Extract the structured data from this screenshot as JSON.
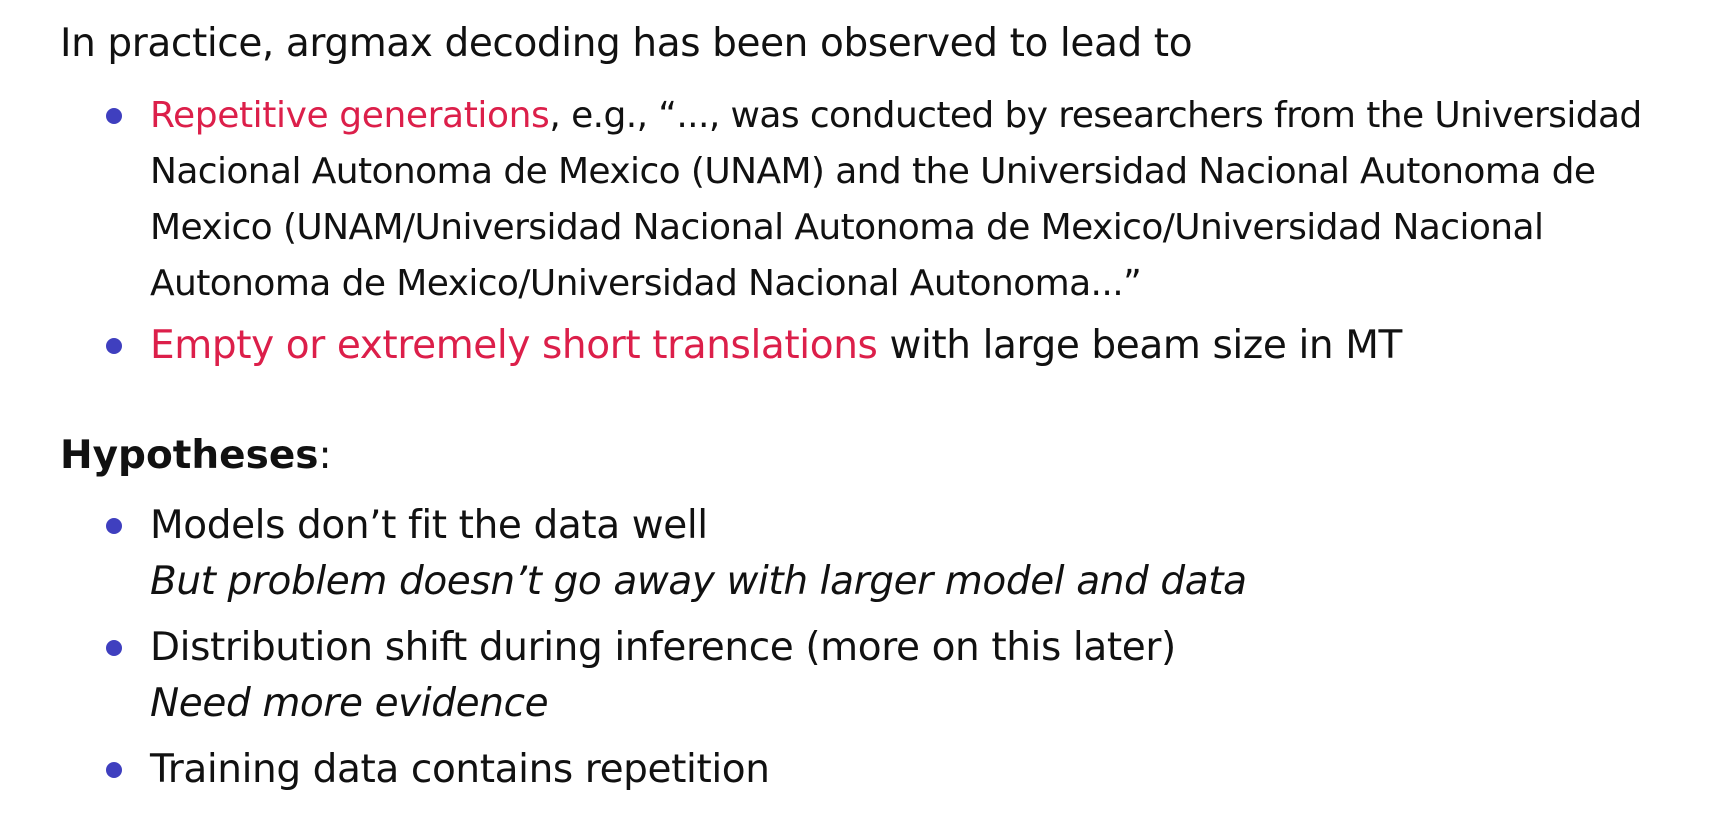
{
  "intro": "In practice, argmax decoding has been observed to lead to",
  "observations": {
    "repetitive": {
      "highlight": "Repetitive generations",
      "rest": ", e.g., “..., was conducted by researchers from the Universidad Nacional Autonoma de Mexico (UNAM) and the Universidad Nacional Autonoma de Mexico (UNAM/Universidad Nacional Autonoma de Mexico/Universidad Nacional Autonoma de Mexico/Universidad Nacional Autonoma...”"
    },
    "empty": {
      "highlight": "Empty or extremely short translations",
      "rest": " with large beam size in MT"
    }
  },
  "hypotheses": {
    "title": "Hypotheses",
    "colon": ":",
    "items": [
      {
        "text": "Models don’t fit the data well",
        "note": "But problem doesn’t go away with larger model and data"
      },
      {
        "text": "Distribution shift during inference (more on this later)",
        "note": "Need more evidence"
      },
      {
        "text": "Training data contains repetition",
        "note": ""
      }
    ]
  },
  "colors": {
    "highlight": "#dc1f4a",
    "bullet": "#3f3fbf",
    "text": "#111111"
  }
}
